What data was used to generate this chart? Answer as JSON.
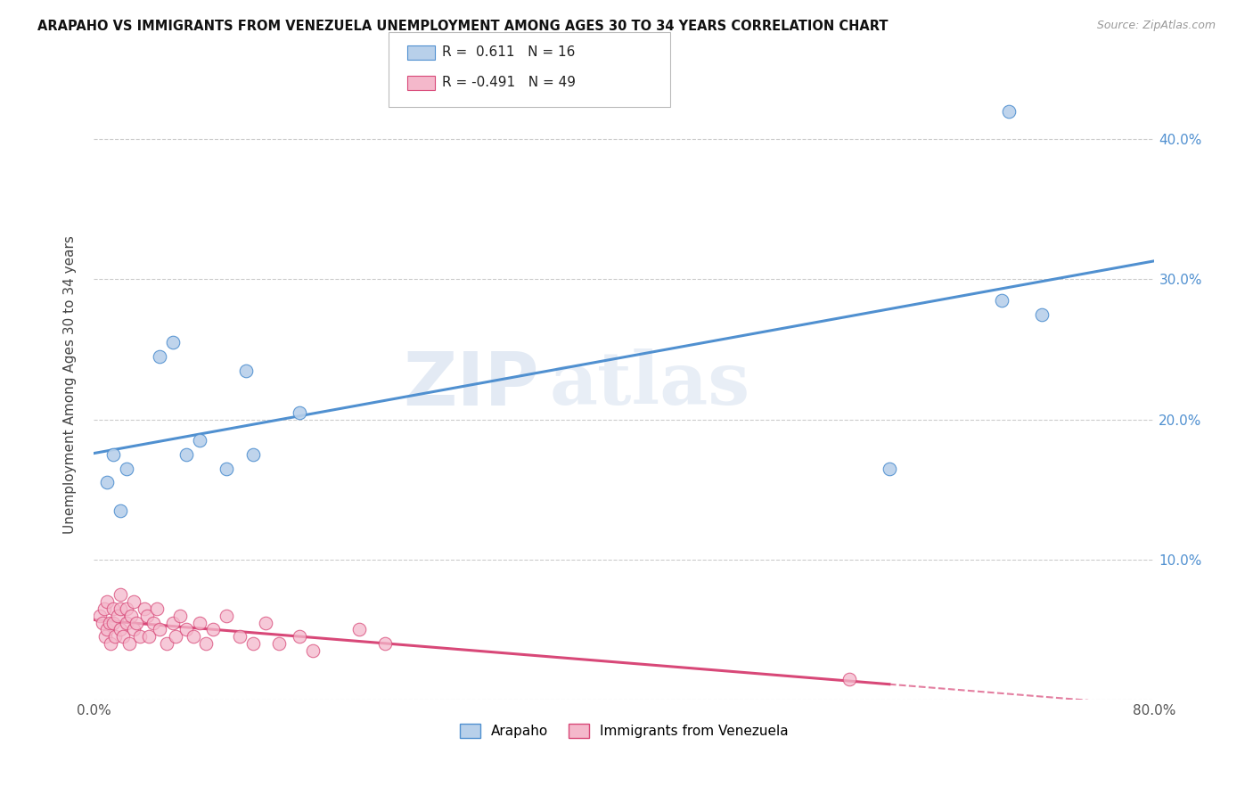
{
  "title": "ARAPAHO VS IMMIGRANTS FROM VENEZUELA UNEMPLOYMENT AMONG AGES 30 TO 34 YEARS CORRELATION CHART",
  "source": "Source: ZipAtlas.com",
  "ylabel": "Unemployment Among Ages 30 to 34 years",
  "xlim": [
    0,
    0.8
  ],
  "ylim": [
    0,
    0.45
  ],
  "yticks": [
    0.0,
    0.1,
    0.2,
    0.3,
    0.4
  ],
  "ytick_labels": [
    "",
    "10.0%",
    "20.0%",
    "30.0%",
    "40.0%"
  ],
  "xticks": [
    0.0,
    0.1,
    0.2,
    0.3,
    0.4,
    0.5,
    0.6,
    0.7,
    0.8
  ],
  "xtick_labels": [
    "0.0%",
    "",
    "",
    "",
    "",
    "",
    "",
    "",
    "80.0%"
  ],
  "watermark_zip": "ZIP",
  "watermark_atlas": "atlas",
  "blue_R": 0.611,
  "blue_N": 16,
  "pink_R": -0.491,
  "pink_N": 49,
  "blue_color": "#b8d0ea",
  "pink_color": "#f4b8cb",
  "blue_line_color": "#5090d0",
  "pink_line_color": "#d84878",
  "blue_scatter_x": [
    0.01,
    0.015,
    0.02,
    0.025,
    0.05,
    0.06,
    0.07,
    0.08,
    0.1,
    0.115,
    0.12,
    0.155,
    0.6,
    0.685,
    0.69,
    0.715
  ],
  "blue_scatter_y": [
    0.155,
    0.175,
    0.135,
    0.165,
    0.245,
    0.255,
    0.175,
    0.185,
    0.165,
    0.235,
    0.175,
    0.205,
    0.165,
    0.285,
    0.42,
    0.275
  ],
  "pink_scatter_x": [
    0.005,
    0.007,
    0.008,
    0.009,
    0.01,
    0.01,
    0.012,
    0.013,
    0.015,
    0.015,
    0.016,
    0.018,
    0.02,
    0.02,
    0.02,
    0.022,
    0.025,
    0.025,
    0.027,
    0.028,
    0.03,
    0.03,
    0.032,
    0.035,
    0.038,
    0.04,
    0.042,
    0.045,
    0.048,
    0.05,
    0.055,
    0.06,
    0.062,
    0.065,
    0.07,
    0.075,
    0.08,
    0.085,
    0.09,
    0.1,
    0.11,
    0.12,
    0.13,
    0.14,
    0.155,
    0.165,
    0.2,
    0.22,
    0.57
  ],
  "pink_scatter_y": [
    0.06,
    0.055,
    0.065,
    0.045,
    0.05,
    0.07,
    0.055,
    0.04,
    0.055,
    0.065,
    0.045,
    0.06,
    0.05,
    0.065,
    0.075,
    0.045,
    0.055,
    0.065,
    0.04,
    0.06,
    0.05,
    0.07,
    0.055,
    0.045,
    0.065,
    0.06,
    0.045,
    0.055,
    0.065,
    0.05,
    0.04,
    0.055,
    0.045,
    0.06,
    0.05,
    0.045,
    0.055,
    0.04,
    0.05,
    0.06,
    0.045,
    0.04,
    0.055,
    0.04,
    0.045,
    0.035,
    0.05,
    0.04,
    0.015
  ],
  "pink_line_solid_end": 0.6,
  "pink_line_dashed_end": 0.75,
  "background_color": "#ffffff",
  "grid_color": "#cccccc",
  "legend_R_blue": "R =  0.611   N = 16",
  "legend_R_pink": "R = -0.491   N = 49"
}
